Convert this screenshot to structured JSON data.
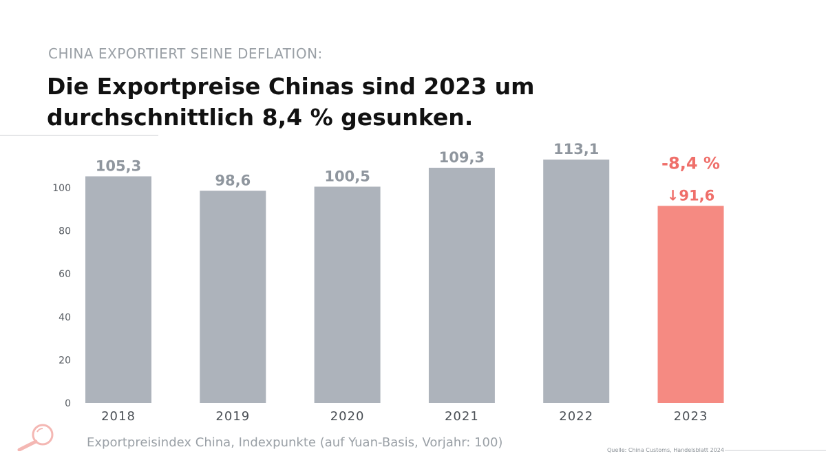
{
  "kicker": "CHINA EXPORTIERT SEINE DEFLATION:",
  "headline": "Die Exportpreise Chinas sind 2023 um durchschnittlich 8,4 % gesunken.",
  "caption": "Exportpreisindex China, Indexpunkte (auf Yuan-Basis, Vorjahr: 100)",
  "source": "Quelle: China Customs, Handelsblatt 2024",
  "icon": "magnifier-icon",
  "colors": {
    "bar": "#adb3bb",
    "highlight": "#f58a82",
    "label": "#8f969e",
    "highlight_text": "#ef6f6a"
  },
  "chart_data": {
    "type": "bar",
    "categories": [
      "2018",
      "2019",
      "2020",
      "2021",
      "2022",
      "2023"
    ],
    "values": [
      105.3,
      98.6,
      100.5,
      109.3,
      113.1,
      91.6
    ],
    "value_labels": [
      "105,3",
      "98,6",
      "100,5",
      "109,3",
      "113,1",
      "↓91,6"
    ],
    "highlight_index": 5,
    "change_label": "-8,4 %",
    "ylim": [
      0,
      115
    ],
    "yticks": [
      0,
      20,
      40,
      60,
      80,
      100
    ],
    "xlabel": "",
    "ylabel": "",
    "grid": false
  }
}
